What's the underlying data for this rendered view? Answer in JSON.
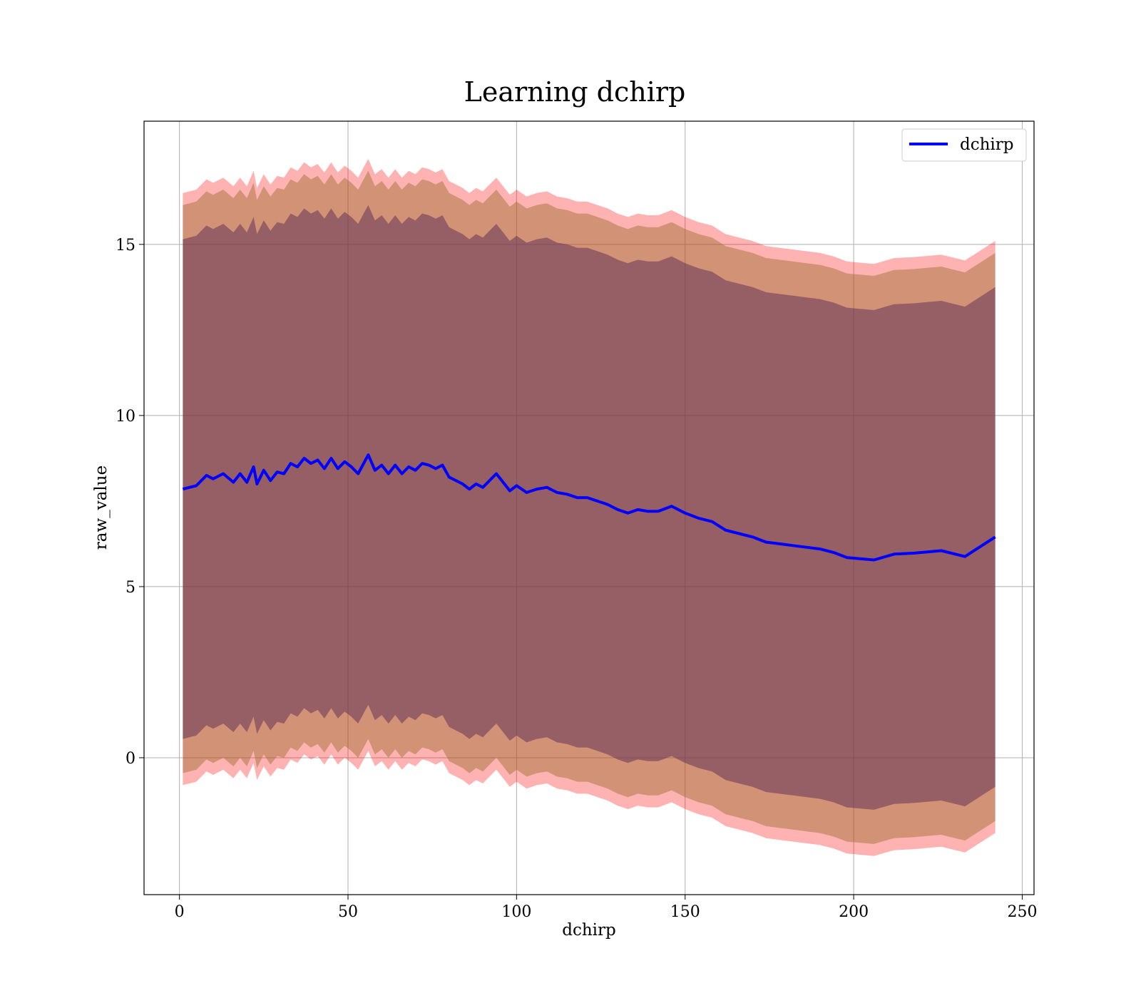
{
  "chart_data": {
    "type": "line",
    "title": "Learning dchirp",
    "xlabel": "dchirp",
    "ylabel": "raw_value",
    "xlim": [
      -10.5,
      253.5
    ],
    "ylim": [
      -4.0,
      18.6
    ],
    "xticks": [
      0,
      50,
      100,
      150,
      200,
      250
    ],
    "yticks": [
      0,
      5,
      10,
      15
    ],
    "grid": true,
    "legend": {
      "position": "top-right",
      "entries": [
        "dchirp"
      ]
    },
    "colors": {
      "line": "#0000ff",
      "outer_band": "#ff0000",
      "mid_band": "#9a6a2a",
      "inner_band": "#5c2a55"
    },
    "series": [
      {
        "name": "dchirp",
        "x": [
          1,
          5,
          8,
          10,
          13,
          16,
          18,
          20,
          22,
          23,
          25,
          27,
          29,
          31,
          33,
          35,
          37,
          39,
          41,
          43,
          45,
          47,
          49,
          51,
          53,
          56,
          58,
          60,
          62,
          64,
          66,
          68,
          70,
          72,
          74,
          76,
          78,
          80,
          82,
          84,
          86,
          88,
          90,
          92,
          94,
          96,
          98,
          100,
          103,
          106,
          109,
          112,
          115,
          118,
          121,
          124,
          127,
          130,
          133,
          136,
          139,
          142,
          146,
          150,
          154,
          158,
          162,
          166,
          170,
          174,
          178,
          182,
          186,
          190,
          194,
          198,
          206,
          212,
          218,
          226,
          233,
          242
        ],
        "values": [
          7.85,
          7.95,
          8.25,
          8.15,
          8.3,
          8.05,
          8.3,
          8.05,
          8.5,
          8.0,
          8.4,
          8.1,
          8.35,
          8.3,
          8.6,
          8.5,
          8.75,
          8.6,
          8.7,
          8.45,
          8.75,
          8.45,
          8.65,
          8.5,
          8.3,
          8.85,
          8.4,
          8.55,
          8.3,
          8.55,
          8.3,
          8.5,
          8.4,
          8.6,
          8.55,
          8.45,
          8.55,
          8.2,
          8.1,
          8.0,
          7.85,
          8.0,
          7.9,
          8.1,
          8.3,
          8.05,
          7.8,
          7.95,
          7.75,
          7.85,
          7.9,
          7.75,
          7.7,
          7.6,
          7.6,
          7.5,
          7.4,
          7.25,
          7.15,
          7.25,
          7.2,
          7.2,
          7.35,
          7.15,
          7.0,
          6.9,
          6.65,
          6.55,
          6.45,
          6.3,
          6.25,
          6.2,
          6.15,
          6.1,
          6.0,
          5.85,
          5.78,
          5.95,
          5.98,
          6.05,
          5.88,
          6.45
        ],
        "inner_band_halfwidth": [
          7.3,
          7.3,
          7.3,
          7.3,
          7.3,
          7.3,
          7.3,
          7.3,
          7.3,
          7.3,
          7.3,
          7.3,
          7.3,
          7.3,
          7.3,
          7.3,
          7.3,
          7.3,
          7.3,
          7.3,
          7.3,
          7.3,
          7.3,
          7.3,
          7.3,
          7.3,
          7.3,
          7.3,
          7.3,
          7.3,
          7.3,
          7.3,
          7.3,
          7.3,
          7.3,
          7.3,
          7.3,
          7.3,
          7.3,
          7.3,
          7.3,
          7.3,
          7.3,
          7.3,
          7.3,
          7.3,
          7.3,
          7.3,
          7.3,
          7.3,
          7.3,
          7.3,
          7.3,
          7.3,
          7.3,
          7.3,
          7.3,
          7.3,
          7.3,
          7.3,
          7.3,
          7.3,
          7.3,
          7.3,
          7.3,
          7.3,
          7.3,
          7.3,
          7.3,
          7.3,
          7.3,
          7.3,
          7.3,
          7.3,
          7.3,
          7.3,
          7.3,
          7.3,
          7.3,
          7.3,
          7.3,
          7.3
        ],
        "mid_band_halfwidth": [
          8.3,
          8.3,
          8.3,
          8.3,
          8.3,
          8.3,
          8.3,
          8.3,
          8.3,
          8.3,
          8.3,
          8.3,
          8.3,
          8.3,
          8.3,
          8.3,
          8.3,
          8.3,
          8.3,
          8.3,
          8.3,
          8.3,
          8.3,
          8.3,
          8.3,
          8.3,
          8.3,
          8.3,
          8.3,
          8.3,
          8.3,
          8.3,
          8.3,
          8.3,
          8.3,
          8.3,
          8.3,
          8.3,
          8.3,
          8.3,
          8.3,
          8.3,
          8.3,
          8.3,
          8.3,
          8.3,
          8.3,
          8.3,
          8.3,
          8.3,
          8.3,
          8.3,
          8.3,
          8.3,
          8.3,
          8.3,
          8.3,
          8.3,
          8.3,
          8.3,
          8.3,
          8.3,
          8.3,
          8.3,
          8.3,
          8.3,
          8.3,
          8.3,
          8.3,
          8.3,
          8.3,
          8.3,
          8.3,
          8.3,
          8.3,
          8.3,
          8.3,
          8.3,
          8.3,
          8.3,
          8.3,
          8.3
        ],
        "outer_band_halfwidth": [
          8.65,
          8.65,
          8.65,
          8.65,
          8.65,
          8.65,
          8.65,
          8.65,
          8.65,
          8.65,
          8.65,
          8.65,
          8.65,
          8.65,
          8.65,
          8.65,
          8.65,
          8.65,
          8.65,
          8.65,
          8.65,
          8.65,
          8.65,
          8.65,
          8.65,
          8.65,
          8.65,
          8.65,
          8.65,
          8.65,
          8.65,
          8.65,
          8.65,
          8.65,
          8.65,
          8.65,
          8.65,
          8.65,
          8.65,
          8.65,
          8.65,
          8.65,
          8.65,
          8.65,
          8.65,
          8.65,
          8.65,
          8.65,
          8.65,
          8.65,
          8.65,
          8.65,
          8.65,
          8.65,
          8.65,
          8.65,
          8.65,
          8.65,
          8.65,
          8.65,
          8.65,
          8.65,
          8.65,
          8.65,
          8.65,
          8.65,
          8.65,
          8.65,
          8.65,
          8.65,
          8.65,
          8.65,
          8.65,
          8.65,
          8.65,
          8.65,
          8.65,
          8.65,
          8.65,
          8.65,
          8.65,
          8.65
        ]
      }
    ]
  }
}
